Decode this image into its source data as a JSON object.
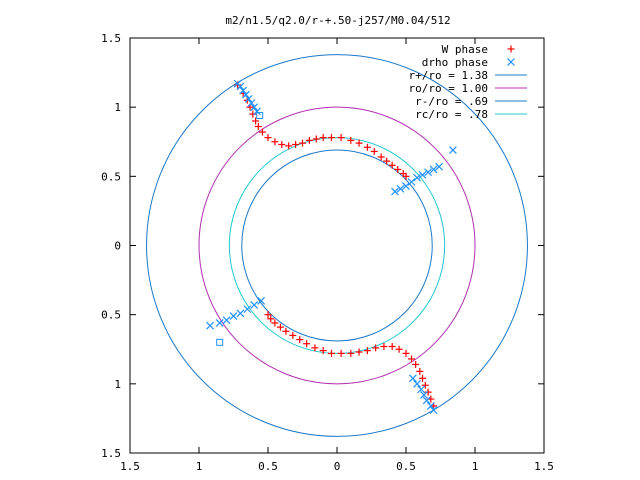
{
  "chart_data": {
    "type": "scatter",
    "title": "m2/n1.5/q2.0/r-+.50-j257/M0.04/512",
    "xlabel": "",
    "ylabel": "",
    "xlim": [
      -1.5,
      1.5
    ],
    "ylim": [
      -1.5,
      1.5
    ],
    "x_ticks": [
      -1.5,
      -1,
      -0.5,
      0,
      0.5,
      1,
      1.5
    ],
    "x_tick_labels": [
      "1.5",
      "1",
      "0.5",
      "0",
      "0.5",
      "1",
      "1.5"
    ],
    "y_ticks": [
      1.5,
      1,
      0.5,
      0,
      -0.5,
      -1,
      -1.5
    ],
    "y_tick_labels": [
      "1.5",
      "1",
      "0.5",
      "0",
      "0.5",
      "1",
      "1.5"
    ],
    "grid": false,
    "legend_position": "top-right",
    "series": [
      {
        "name": "W phase",
        "kind": "points",
        "marker": "plus",
        "color": "#ff0000",
        "points": [
          [
            -0.72,
            1.16
          ],
          [
            -0.68,
            1.1
          ],
          [
            -0.65,
            1.05
          ],
          [
            -0.63,
            1.0
          ],
          [
            -0.61,
            0.95
          ],
          [
            -0.59,
            0.9
          ],
          [
            -0.57,
            0.86
          ],
          [
            -0.54,
            0.82
          ],
          [
            -0.5,
            0.78
          ],
          [
            -0.45,
            0.75
          ],
          [
            -0.4,
            0.73
          ],
          [
            -0.35,
            0.72
          ],
          [
            -0.3,
            0.73
          ],
          [
            -0.25,
            0.74
          ],
          [
            -0.2,
            0.76
          ],
          [
            -0.15,
            0.77
          ],
          [
            -0.1,
            0.78
          ],
          [
            -0.04,
            0.78
          ],
          [
            0.03,
            0.78
          ],
          [
            0.1,
            0.76
          ],
          [
            0.16,
            0.74
          ],
          [
            0.22,
            0.71
          ],
          [
            0.27,
            0.68
          ],
          [
            0.32,
            0.64
          ],
          [
            0.36,
            0.61
          ],
          [
            0.4,
            0.58
          ],
          [
            0.44,
            0.55
          ],
          [
            0.48,
            0.52
          ],
          [
            0.5,
            0.5
          ],
          [
            -0.5,
            -0.5
          ],
          [
            -0.48,
            -0.53
          ],
          [
            -0.45,
            -0.56
          ],
          [
            -0.41,
            -0.59
          ],
          [
            -0.37,
            -0.62
          ],
          [
            -0.32,
            -0.65
          ],
          [
            -0.27,
            -0.68
          ],
          [
            -0.22,
            -0.71
          ],
          [
            -0.16,
            -0.74
          ],
          [
            -0.1,
            -0.76
          ],
          [
            -0.04,
            -0.78
          ],
          [
            0.03,
            -0.78
          ],
          [
            0.1,
            -0.78
          ],
          [
            0.16,
            -0.77
          ],
          [
            0.22,
            -0.76
          ],
          [
            0.28,
            -0.74
          ],
          [
            0.34,
            -0.73
          ],
          [
            0.4,
            -0.73
          ],
          [
            0.45,
            -0.75
          ],
          [
            0.5,
            -0.78
          ],
          [
            0.54,
            -0.82
          ],
          [
            0.57,
            -0.86
          ],
          [
            0.6,
            -0.91
          ],
          [
            0.62,
            -0.96
          ],
          [
            0.64,
            -1.01
          ],
          [
            0.66,
            -1.06
          ],
          [
            0.68,
            -1.11
          ],
          [
            0.7,
            -1.16
          ]
        ]
      },
      {
        "name": "drho phase",
        "kind": "points",
        "marker": "cross",
        "color": "#1e90ff",
        "points": [
          [
            -0.72,
            1.17
          ],
          [
            -0.7,
            1.15
          ],
          [
            -0.68,
            1.12
          ],
          [
            -0.66,
            1.09
          ],
          [
            -0.64,
            1.06
          ],
          [
            -0.62,
            1.03
          ],
          [
            -0.6,
            1.0
          ],
          [
            -0.58,
            0.97
          ],
          [
            0.42,
            0.39
          ],
          [
            0.46,
            0.41
          ],
          [
            0.5,
            0.43
          ],
          [
            0.54,
            0.46
          ],
          [
            0.58,
            0.49
          ],
          [
            0.62,
            0.51
          ],
          [
            0.66,
            0.53
          ],
          [
            0.7,
            0.55
          ],
          [
            0.74,
            0.57
          ],
          [
            0.84,
            0.69
          ],
          [
            -0.55,
            -0.4
          ],
          [
            -0.6,
            -0.43
          ],
          [
            -0.65,
            -0.46
          ],
          [
            -0.7,
            -0.49
          ],
          [
            -0.75,
            -0.51
          ],
          [
            -0.8,
            -0.54
          ],
          [
            -0.85,
            -0.56
          ],
          [
            -0.92,
            -0.58
          ],
          [
            0.55,
            -0.96
          ],
          [
            0.58,
            -1.0
          ],
          [
            0.61,
            -1.04
          ],
          [
            0.63,
            -1.08
          ],
          [
            0.65,
            -1.12
          ],
          [
            0.68,
            -1.16
          ],
          [
            0.7,
            -1.19
          ]
        ],
        "open_squares": [
          [
            -0.56,
            0.94
          ],
          [
            -0.85,
            -0.7
          ]
        ]
      },
      {
        "name": "r+/ro = 1.38",
        "kind": "circle",
        "radius": 1.38,
        "color": "#1e78c8"
      },
      {
        "name": "ro/ro = 1.00",
        "kind": "circle",
        "radius": 1.0,
        "color": "#b030b0"
      },
      {
        "name": "r-/ro = .69",
        "kind": "circle",
        "radius": 0.69,
        "color": "#1e78c8"
      },
      {
        "name": "rc/ro = .78",
        "kind": "circle",
        "radius": 0.78,
        "color": "#20c8d0"
      }
    ]
  }
}
